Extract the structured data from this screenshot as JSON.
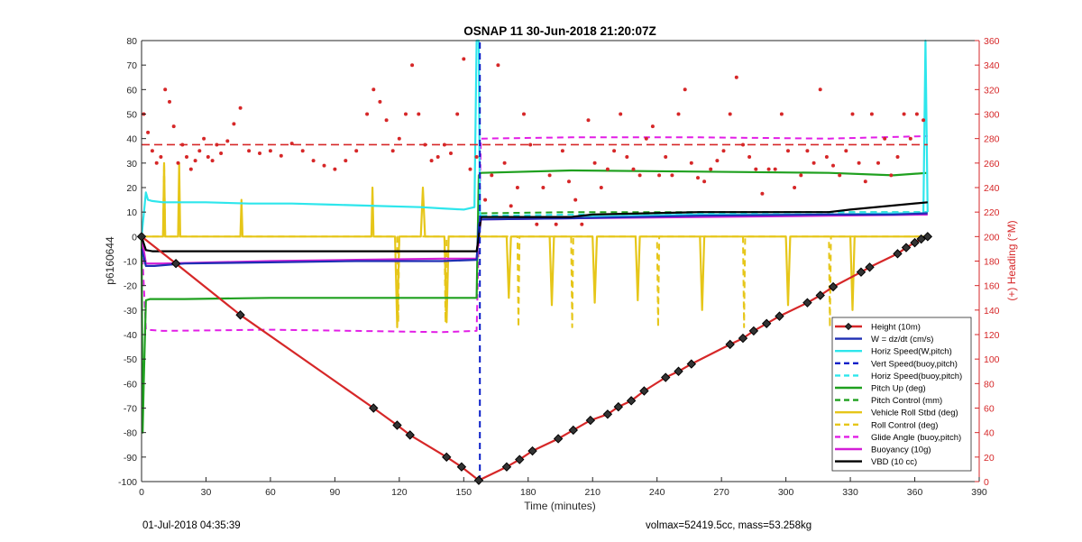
{
  "chart_data": {
    "type": "line",
    "title": "OSNAP 11 30-Jun-2018 21:20:07Z",
    "xlabel": "Time (minutes)",
    "ylabel_left": "p6160644",
    "ylabel_right": "(+) Heading (°M)",
    "xlim": [
      0,
      390
    ],
    "ylim_left": [
      -100,
      80
    ],
    "ylim_right": [
      0,
      360
    ],
    "x_ticks": [
      "0",
      "30",
      "60",
      "90",
      "120",
      "150",
      "180",
      "210",
      "240",
      "270",
      "300",
      "330",
      "360",
      "390"
    ],
    "y_ticks_left": [
      "80",
      "70",
      "60",
      "50",
      "40",
      "30",
      "20",
      "10",
      "0",
      "-10",
      "-20",
      "-30",
      "-40",
      "-50",
      "-60",
      "-70",
      "-80",
      "-90",
      "-100"
    ],
    "y_ticks_right": [
      "360",
      "340",
      "320",
      "300",
      "280",
      "260",
      "240",
      "220",
      "200",
      "180",
      "160",
      "140",
      "120",
      "100",
      "80",
      "60",
      "40",
      "20",
      "0"
    ],
    "footer_left": "01-Jul-2018 04:35:39",
    "footer_right": "volmax=52419.5cc, mass=53.258kg",
    "legend_position": "lower-right",
    "series": [
      {
        "name": "Height (10m)",
        "color": "#d62728",
        "style": "solid",
        "marker": "diamond",
        "x": [
          0,
          16,
          46,
          108,
          119,
          125,
          142,
          149,
          157,
          170,
          176,
          182,
          194,
          201,
          209,
          217,
          222,
          228,
          234,
          244,
          250,
          256,
          274,
          280,
          285,
          291,
          297,
          310,
          316,
          322,
          335,
          339,
          352,
          356,
          360,
          363,
          366
        ],
        "y": [
          0,
          -11,
          -32,
          -70,
          -77,
          -81,
          -90,
          -94,
          -99.5,
          -94,
          -91,
          -87.5,
          -82.5,
          -79,
          -75,
          -72.5,
          -69.5,
          -67,
          -63,
          -57.5,
          -55,
          -52,
          -44,
          -41.5,
          -38.5,
          -35.5,
          -32.5,
          -27,
          -24,
          -20.5,
          -14.5,
          -12.5,
          -7,
          -4.5,
          -2.5,
          -1,
          0
        ]
      },
      {
        "name": "W = dz/dt (cm/s)",
        "color": "#1f2fb4",
        "style": "solid",
        "x": [
          0,
          2,
          6,
          20,
          60,
          100,
          140,
          156,
          157,
          158,
          200,
          260,
          320,
          350,
          366
        ],
        "y": [
          -5,
          -12,
          -12,
          -11,
          -10.5,
          -10,
          -10,
          -9.5,
          5,
          7,
          7.5,
          8.5,
          9,
          9,
          9.5
        ]
      },
      {
        "name": "Horiz Speed(W,pitch)",
        "color": "#2ee6ec",
        "style": "solid",
        "x": [
          0,
          2,
          3,
          5,
          10,
          30,
          50,
          70,
          90,
          110,
          130,
          140,
          150,
          155,
          156,
          157,
          157.5,
          158,
          160,
          200,
          260,
          320,
          350,
          364,
          365,
          366
        ],
        "y": [
          0,
          18,
          15,
          14.5,
          14,
          14,
          13.5,
          13.5,
          13,
          12.5,
          12,
          11.5,
          11,
          12,
          80,
          80,
          10,
          8,
          8,
          8,
          9,
          9,
          9.5,
          9.5,
          80,
          10
        ]
      },
      {
        "name": "Vert Speed(buoy,pitch)",
        "color": "#0a1ec8",
        "style": "dashed",
        "x": [
          157.5,
          157.5
        ],
        "y": [
          -100,
          80
        ]
      },
      {
        "name": "Horiz Speed(buoy,pitch)",
        "color": "#2ee6ec",
        "style": "dashed",
        "x": [
          158,
          200,
          260,
          320,
          366
        ],
        "y": [
          8.5,
          9,
          9.5,
          10,
          10
        ]
      },
      {
        "name": "Pitch Up (deg)",
        "color": "#1fa01f",
        "style": "solid",
        "x": [
          0,
          0.5,
          1,
          2,
          4,
          20,
          60,
          100,
          140,
          156,
          157,
          158,
          200,
          260,
          320,
          350,
          366
        ],
        "y": [
          0,
          -80,
          -60,
          -26,
          -25.5,
          -25.5,
          -25,
          -25,
          -25,
          -25,
          25,
          26,
          27,
          26.5,
          26,
          25,
          26
        ]
      },
      {
        "name": "Pitch Control (mm)",
        "color": "#1fa01f",
        "style": "dashed",
        "x": [
          158,
          200,
          260,
          320,
          366
        ],
        "y": [
          9.5,
          10,
          10,
          10,
          10
        ]
      },
      {
        "name": "Vehicle Roll Stbd (deg)",
        "color": "#e6c619",
        "style": "solid",
        "x": [
          0,
          10,
          10.5,
          11,
          17,
          17.5,
          18,
          46,
          46.5,
          47,
          107,
          107.5,
          108,
          118,
          119,
          120,
          130,
          131,
          132,
          141,
          142,
          143,
          156,
          157,
          158,
          170,
          171,
          172,
          190,
          191,
          192,
          210,
          211,
          212,
          230,
          231,
          232,
          260,
          261,
          262,
          300,
          301,
          302,
          330,
          331,
          332,
          366
        ],
        "y": [
          0,
          0,
          30,
          0,
          0,
          30,
          0,
          0,
          15,
          0,
          0,
          20,
          0,
          0,
          -37,
          0,
          0,
          20,
          0,
          0,
          -35,
          0,
          0,
          0,
          0,
          0,
          -25,
          0,
          0,
          -28,
          0,
          0,
          -27,
          0,
          0,
          -26,
          0,
          0,
          -30,
          0,
          0,
          -28,
          0,
          0,
          -30,
          0,
          0
        ]
      },
      {
        "name": "Roll Control (deg)",
        "color": "#e6c619",
        "style": "dashed",
        "x": [
          0,
          10,
          10.5,
          11,
          119,
          119.5,
          120,
          141,
          141.5,
          142,
          156,
          158,
          175,
          175.5,
          176,
          200,
          200.5,
          201,
          240,
          240.5,
          241,
          280,
          280.5,
          281,
          320,
          320.5,
          321,
          366
        ],
        "y": [
          0,
          0,
          30,
          0,
          0,
          -35,
          0,
          0,
          -35,
          0,
          0,
          0,
          0,
          -37,
          0,
          0,
          -37,
          0,
          0,
          -37,
          0,
          0,
          -37,
          0,
          0,
          -37,
          0,
          0
        ]
      },
      {
        "name": "Glide Angle (buoy,pitch)",
        "color": "#e21ee6",
        "style": "dashed",
        "x": [
          0,
          2,
          10,
          60,
          100,
          140,
          156,
          157,
          158,
          200,
          260,
          320,
          366
        ],
        "y": [
          0,
          -38,
          -38.5,
          -38,
          -38.5,
          -39,
          -38.5,
          0,
          40,
          40.5,
          40.5,
          40,
          41
        ]
      },
      {
        "name": "Buoyancy (10g)",
        "color": "#d31ed6",
        "style": "solid",
        "x": [
          0,
          2,
          10,
          60,
          100,
          140,
          156,
          157,
          158,
          200,
          260,
          320,
          366
        ],
        "y": [
          0,
          -11,
          -11,
          -10,
          -9.5,
          -9,
          -9,
          0,
          7,
          7.5,
          8,
          8.5,
          9
        ]
      },
      {
        "name": "VBD (10 cc)",
        "color": "#000000",
        "style": "solid",
        "x": [
          0,
          2,
          5,
          60,
          100,
          140,
          156,
          157,
          158,
          200,
          210,
          260,
          320,
          330,
          366
        ],
        "y": [
          0,
          -5.5,
          -6,
          -6,
          -6,
          -6,
          -6,
          0,
          8,
          8,
          9,
          10,
          10,
          11,
          14
        ]
      }
    ],
    "heading": {
      "name": "(+) Heading (°M)",
      "color": "#d62728",
      "axis": "right",
      "reference_line": {
        "value": 275,
        "style": "dashed"
      },
      "x": [
        1,
        3,
        5,
        7,
        9,
        11,
        13,
        15,
        17,
        19,
        21,
        23,
        25,
        27,
        29,
        31,
        33,
        35,
        37,
        40,
        43,
        46,
        50,
        55,
        60,
        65,
        70,
        75,
        80,
        85,
        90,
        95,
        100,
        105,
        108,
        111,
        114,
        117,
        120,
        123,
        126,
        129,
        132,
        135,
        138,
        141,
        144,
        147,
        150,
        153,
        156,
        160,
        163,
        166,
        169,
        172,
        175,
        178,
        181,
        184,
        187,
        190,
        193,
        196,
        199,
        202,
        205,
        208,
        211,
        214,
        217,
        220,
        223,
        226,
        229,
        232,
        235,
        238,
        241,
        244,
        247,
        250,
        253,
        256,
        259,
        262,
        265,
        268,
        271,
        274,
        277,
        280,
        283,
        286,
        289,
        292,
        295,
        298,
        301,
        304,
        307,
        310,
        313,
        316,
        319,
        322,
        325,
        328,
        331,
        334,
        337,
        340,
        343,
        346,
        349,
        352,
        355,
        358,
        361,
        364
      ],
      "y": [
        300,
        285,
        270,
        260,
        265,
        320,
        310,
        290,
        260,
        275,
        265,
        255,
        262,
        270,
        280,
        265,
        262,
        275,
        268,
        278,
        292,
        305,
        270,
        268,
        270,
        266,
        276,
        270,
        262,
        258,
        255,
        262,
        270,
        300,
        320,
        310,
        295,
        270,
        280,
        300,
        340,
        300,
        275,
        262,
        265,
        275,
        268,
        300,
        345,
        255,
        265,
        230,
        250,
        340,
        260,
        225,
        240,
        300,
        275,
        210,
        240,
        250,
        210,
        270,
        245,
        230,
        210,
        295,
        260,
        240,
        255,
        270,
        300,
        265,
        255,
        250,
        280,
        290,
        250,
        265,
        250,
        300,
        320,
        260,
        248,
        245,
        255,
        262,
        270,
        300,
        330,
        275,
        265,
        255,
        235,
        255,
        255,
        300,
        270,
        240,
        250,
        270,
        260,
        320,
        265,
        258,
        250,
        270,
        300,
        260,
        245,
        300,
        260,
        280,
        250,
        265,
        300,
        280,
        300,
        295
      ]
    }
  },
  "legend": {
    "entries": [
      {
        "label": "Height (10m)",
        "color": "#d62728",
        "style": "solid",
        "marker": "diamond"
      },
      {
        "label": "W = dz/dt (cm/s)",
        "color": "#1f2fb4",
        "style": "solid"
      },
      {
        "label": "Horiz Speed(W,pitch)",
        "color": "#2ee6ec",
        "style": "solid"
      },
      {
        "label": "Vert Speed(buoy,pitch)",
        "color": "#0a1ec8",
        "style": "dashed"
      },
      {
        "label": "Horiz Speed(buoy,pitch)",
        "color": "#2ee6ec",
        "style": "dashed"
      },
      {
        "label": "Pitch Up (deg)",
        "color": "#1fa01f",
        "style": "solid"
      },
      {
        "label": "Pitch Control (mm)",
        "color": "#1fa01f",
        "style": "dashed"
      },
      {
        "label": "Vehicle Roll Stbd (deg)",
        "color": "#e6c619",
        "style": "solid"
      },
      {
        "label": "Roll Control (deg)",
        "color": "#e6c619",
        "style": "dashed"
      },
      {
        "label": "Glide Angle (buoy,pitch)",
        "color": "#e21ee6",
        "style": "dashed"
      },
      {
        "label": "Buoyancy (10g)",
        "color": "#d31ed6",
        "style": "solid"
      },
      {
        "label": "VBD (10 cc)",
        "color": "#000000",
        "style": "solid"
      }
    ]
  }
}
